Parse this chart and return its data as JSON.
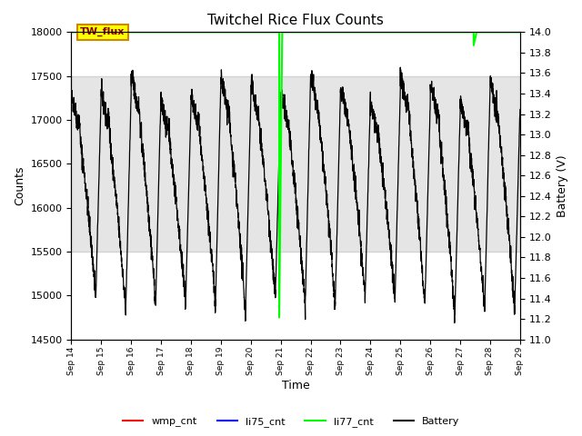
{
  "title": "Twitchel Rice Flux Counts",
  "xlabel": "Time",
  "ylabel_left": "Counts",
  "ylabel_right": "Battery (V)",
  "ylim_left": [
    14500,
    18000
  ],
  "ylim_right": [
    11.0,
    14.0
  ],
  "x_tick_labels": [
    "Sep 14",
    "Sep 15",
    "Sep 16",
    "Sep 17",
    "Sep 18",
    "Sep 19",
    "Sep 20",
    "Sep 21",
    "Sep 22",
    "Sep 23",
    "Sep 24",
    "Sep 25",
    "Sep 26",
    "Sep 27",
    "Sep 28",
    "Sep 29"
  ],
  "gray_band": [
    15500,
    17500
  ],
  "annotation_box_text": "TW_flux",
  "annotation_box_color": "#ffff00",
  "annotation_box_edgecolor": "#cc8800",
  "li77_color": "#00ff00",
  "battery_color": "#000000",
  "wmp_color": "#ff0000",
  "li75_color": "#0000ff",
  "background_color": "#ffffff",
  "legend_labels": [
    "wmp_cnt",
    "li75_cnt",
    "li77_cnt",
    "Battery"
  ],
  "legend_colors": [
    "#ff0000",
    "#0000ff",
    "#00ff00",
    "#000000"
  ]
}
